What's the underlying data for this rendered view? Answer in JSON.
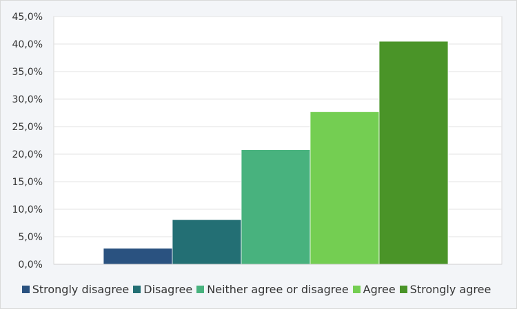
{
  "chart_data": {
    "type": "bar",
    "title": "",
    "xlabel": "",
    "ylabel": "",
    "categories": [
      "Strongly disagree",
      "Disagree",
      "Neither agree or disagree",
      "Agree",
      "Strongly agree"
    ],
    "values": [
      2.9,
      8.1,
      20.8,
      27.7,
      40.5
    ],
    "colors": [
      "#2a5280",
      "#236f74",
      "#48b27e",
      "#74ce52",
      "#4a9428"
    ],
    "ylim": [
      0,
      45
    ],
    "yticks": [
      "0,0%",
      "5,0%",
      "10,0%",
      "15,0%",
      "20,0%",
      "25,0%",
      "30,0%",
      "35,0%",
      "40,0%",
      "45,0%"
    ],
    "grid": true,
    "legend_position": "bottom",
    "value_unit": "%"
  }
}
